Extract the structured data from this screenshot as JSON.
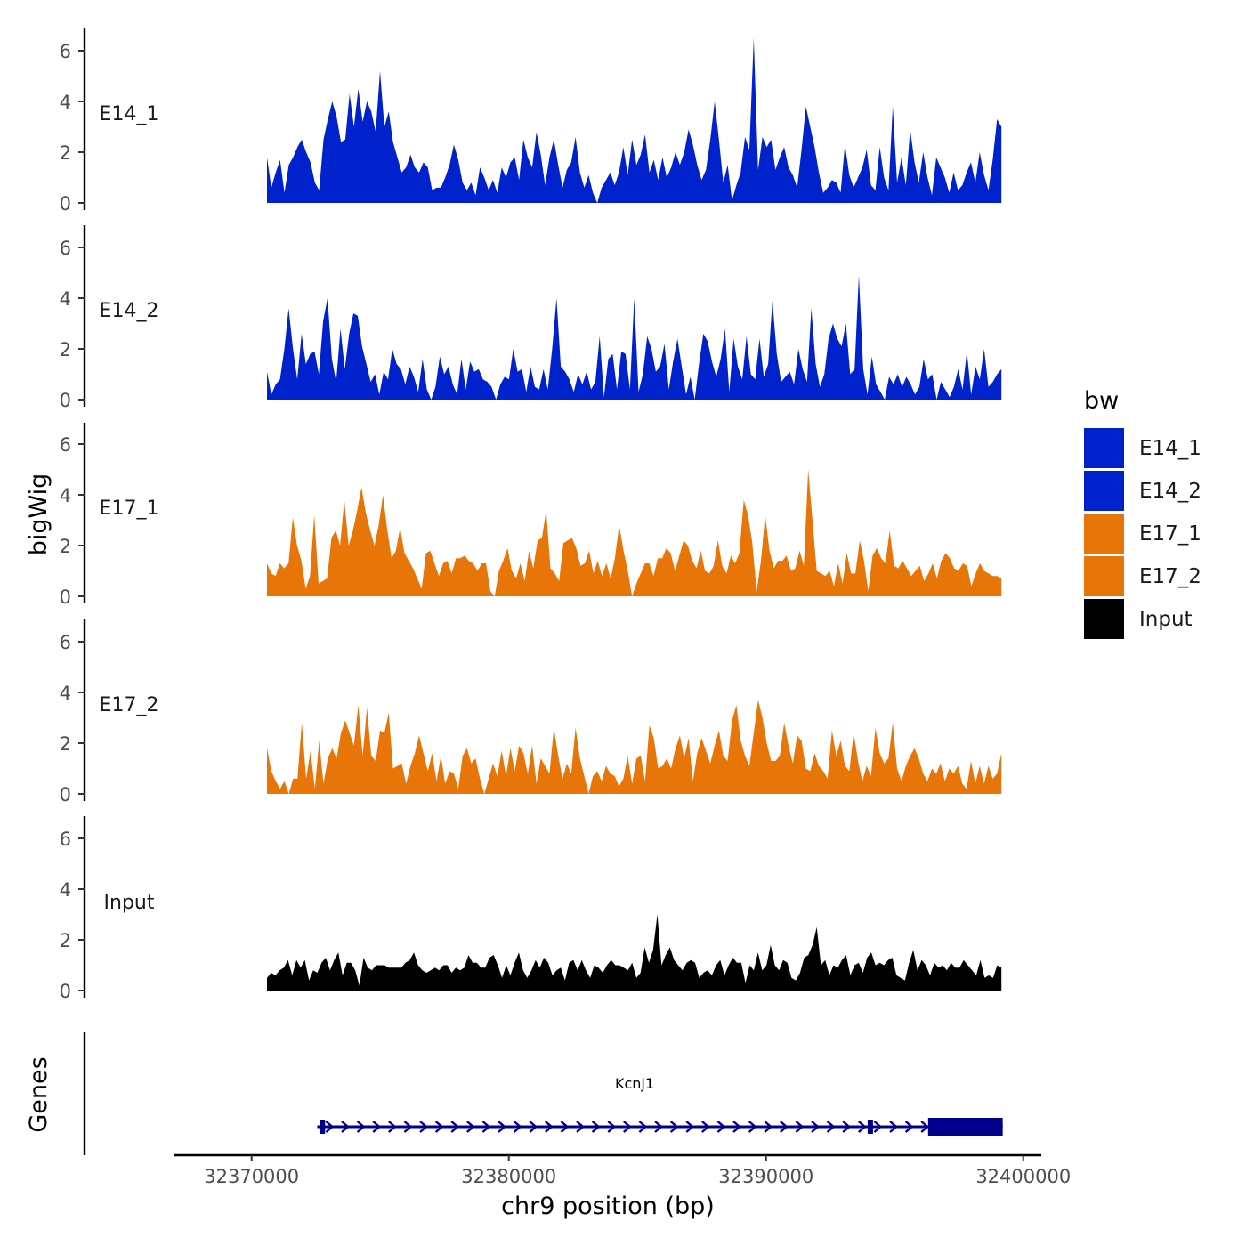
{
  "chart_data": {
    "type": "area",
    "genome_tracks": true,
    "y_axis_title": "bigWig",
    "x_axis_title": "chr9 position (bp)",
    "x_range": [
      32367000,
      32400700
    ],
    "x_ticks": [
      32370000,
      32380000,
      32390000,
      32400000
    ],
    "x_tick_labels": [
      "32370000",
      "32380000",
      "32390000",
      "32400000"
    ],
    "y_range": [
      0,
      7
    ],
    "y_ticks": [
      0,
      2,
      4,
      6
    ],
    "y_tick_labels": [
      "0",
      "2",
      "4",
      "6"
    ],
    "data_x_range": [
      32370600,
      32399150
    ],
    "tracks": [
      {
        "name": "E14_1",
        "color": "#0022CC",
        "values": [
          1.8,
          0.6,
          1.2,
          1.7,
          0.4,
          1.5,
          1.8,
          2.2,
          2.5,
          2.0,
          1.6,
          0.8,
          0.5,
          2.5,
          3.3,
          4.0,
          3.4,
          2.4,
          2.5,
          4.3,
          3.0,
          4.5,
          3.2,
          4.0,
          3.6,
          2.8,
          5.2,
          3.0,
          3.6,
          2.4,
          1.8,
          1.2,
          1.4,
          1.9,
          1.4,
          1.2,
          1.6,
          1.4,
          0.5,
          0.6,
          0.6,
          1.0,
          1.5,
          2.3,
          1.7,
          0.8,
          0.5,
          0.8,
          0.3,
          1.4,
          1.0,
          0.5,
          0.9,
          0.4,
          1.4,
          1.0,
          1.6,
          1.8,
          0.9,
          2.5,
          1.8,
          1.4,
          2.8,
          1.9,
          0.7,
          1.8,
          2.5,
          1.5,
          0.6,
          1.3,
          1.6,
          2.6,
          1.2,
          0.6,
          1.1,
          0.4,
          0.0,
          0.6,
          0.9,
          1.2,
          0.7,
          1.2,
          2.2,
          1.1,
          2.5,
          1.5,
          1.9,
          2.7,
          1.2,
          1.7,
          0.9,
          1.8,
          1.0,
          1.4,
          2.0,
          1.5,
          2.0,
          2.9,
          2.3,
          1.5,
          0.9,
          1.3,
          2.5,
          4.0,
          2.5,
          0.8,
          1.5,
          0.1,
          0.7,
          1.2,
          2.6,
          2.1,
          6.5,
          1.3,
          2.6,
          2.2,
          2.5,
          1.3,
          1.8,
          2.2,
          1.4,
          1.1,
          0.6,
          2.1,
          3.8,
          3.0,
          2.2,
          1.2,
          0.4,
          0.6,
          0.9,
          0.8,
          0.4,
          2.3,
          1.1,
          0.6,
          1.0,
          1.4,
          2.1,
          0.7,
          0.5,
          2.2,
          1.0,
          0.5,
          3.8,
          0.8,
          1.8,
          0.7,
          2.9,
          1.6,
          0.8,
          2.0,
          1.0,
          0.3,
          1.8,
          1.4,
          1.0,
          0.4,
          1.2,
          0.5,
          0.7,
          1.2,
          1.6,
          0.8,
          2.0,
          1.1,
          0.5,
          1.7,
          3.3,
          3.0
        ]
      },
      {
        "name": "E14_2",
        "color": "#0022CC",
        "values": [
          1.1,
          0.2,
          0.6,
          0.8,
          2.0,
          3.6,
          2.0,
          0.8,
          2.6,
          1.4,
          1.8,
          1.9,
          1.0,
          3.1,
          4.0,
          1.6,
          0.7,
          2.8,
          1.2,
          2.6,
          3.4,
          3.3,
          2.1,
          1.4,
          0.7,
          1.0,
          0.2,
          1.1,
          0.8,
          2.0,
          1.4,
          1.2,
          0.6,
          1.3,
          0.9,
          0.3,
          1.6,
          0.4,
          0.0,
          0.5,
          1.7,
          1.0,
          1.3,
          0.6,
          0.2,
          1.6,
          0.4,
          1.5,
          1.1,
          1.2,
          0.8,
          0.7,
          0.5,
          0.0,
          0.6,
          0.9,
          0.8,
          2.0,
          1.1,
          1.2,
          0.3,
          1.3,
          0.5,
          0.4,
          1.2,
          0.4,
          2.0,
          4.0,
          1.3,
          1.1,
          0.8,
          0.3,
          1.0,
          0.6,
          1.1,
          0.4,
          0.7,
          2.5,
          0.1,
          1.6,
          1.8,
          0.4,
          1.9,
          1.8,
          0.4,
          4.0,
          0.3,
          1.0,
          2.5,
          2.0,
          1.1,
          1.3,
          2.2,
          0.4,
          1.5,
          2.4,
          1.3,
          0.2,
          0.9,
          0.0,
          1.4,
          2.6,
          2.3,
          1.5,
          0.9,
          1.6,
          2.8,
          0.3,
          2.4,
          1.3,
          0.8,
          2.5,
          1.0,
          0.8,
          2.4,
          0.9,
          1.4,
          3.9,
          1.8,
          0.7,
          0.9,
          1.1,
          0.6,
          2.0,
          1.2,
          0.7,
          3.6,
          1.4,
          0.5,
          1.0,
          2.4,
          3.0,
          2.4,
          2.1,
          3.0,
          1.0,
          1.2,
          4.9,
          1.2,
          0.2,
          1.7,
          0.6,
          0.3,
          0.0,
          0.9,
          0.6,
          1.0,
          0.5,
          0.9,
          0.6,
          0.2,
          0.5,
          1.6,
          0.8,
          1.0,
          0.0,
          0.7,
          0.4,
          0.1,
          0.5,
          1.2,
          0.4,
          1.9,
          0.2,
          1.3,
          0.8,
          2.0,
          0.5,
          0.7,
          1.0,
          1.2
        ]
      },
      {
        "name": "E17_1",
        "color": "#E87508",
        "values": [
          1.3,
          0.9,
          0.8,
          1.3,
          1.1,
          1.3,
          3.1,
          2.0,
          1.4,
          0.3,
          0.8,
          3.2,
          0.5,
          0.6,
          0.7,
          2.3,
          2.6,
          2.0,
          3.8,
          2.0,
          2.6,
          3.4,
          4.3,
          3.3,
          2.6,
          2.0,
          2.8,
          4.0,
          2.6,
          1.5,
          1.8,
          2.7,
          1.7,
          1.4,
          1.1,
          0.7,
          0.3,
          1.7,
          1.8,
          1.3,
          0.8,
          1.3,
          1.4,
          0.9,
          1.5,
          1.5,
          1.6,
          1.4,
          1.3,
          1.0,
          1.3,
          1.3,
          0.2,
          0.0,
          1.0,
          1.4,
          1.9,
          1.0,
          0.7,
          1.3,
          0.6,
          1.8,
          1.1,
          2.2,
          2.3,
          3.4,
          1.1,
          0.9,
          0.6,
          2.1,
          2.2,
          2.3,
          1.9,
          1.2,
          1.3,
          1.8,
          0.9,
          1.4,
          0.8,
          1.3,
          0.7,
          1.5,
          2.8,
          1.8,
          1.0,
          0.0,
          0.5,
          0.9,
          1.3,
          1.3,
          0.8,
          1.5,
          1.5,
          1.9,
          1.7,
          1.0,
          1.6,
          2.2,
          2.0,
          1.4,
          1.1,
          1.8,
          1.0,
          0.9,
          1.2,
          2.2,
          1.2,
          0.9,
          1.6,
          1.3,
          1.7,
          3.8,
          3.2,
          2.1,
          0.2,
          1.4,
          3.2,
          1.8,
          1.1,
          1.4,
          1.4,
          1.6,
          1.0,
          1.1,
          1.8,
          1.2,
          5.0,
          3.0,
          1.0,
          0.9,
          0.8,
          1.0,
          0.4,
          1.3,
          0.5,
          1.7,
          0.9,
          0.9,
          2.2,
          1.4,
          0.2,
          1.6,
          1.9,
          1.5,
          1.3,
          2.6,
          1.2,
          1.1,
          1.4,
          1.1,
          0.8,
          1.0,
          1.2,
          0.6,
          0.9,
          1.3,
          0.7,
          1.4,
          1.7,
          1.5,
          1.1,
          1.0,
          1.3,
          1.2,
          0.4,
          0.9,
          1.3,
          1.0,
          0.9,
          0.8,
          0.8,
          0.7
        ]
      },
      {
        "name": "E17_2",
        "color": "#E87508",
        "values": [
          1.8,
          0.9,
          0.5,
          0.2,
          0.5,
          0.0,
          0.6,
          0.6,
          2.8,
          0.6,
          1.7,
          0.2,
          2.1,
          0.4,
          1.4,
          1.8,
          1.4,
          2.4,
          2.9,
          2.4,
          1.9,
          3.5,
          1.5,
          3.4,
          1.5,
          1.3,
          2.5,
          2.4,
          3.2,
          1.0,
          1.1,
          1.2,
          0.4,
          1.1,
          1.6,
          2.3,
          1.6,
          0.9,
          1.6,
          0.5,
          1.5,
          0.4,
          0.9,
          0.8,
          0.2,
          1.5,
          1.8,
          1.2,
          1.4,
          0.6,
          0.0,
          0.6,
          1.2,
          0.7,
          1.7,
          0.7,
          1.8,
          0.9,
          1.9,
          1.6,
          0.8,
          1.9,
          0.4,
          1.4,
          1.1,
          0.8,
          2.6,
          1.5,
          0.6,
          1.2,
          0.8,
          2.6,
          1.4,
          0.7,
          0.0,
          0.7,
          0.9,
          0.5,
          1.1,
          0.8,
          0.7,
          0.3,
          0.6,
          1.5,
          0.4,
          1.4,
          1.5,
          0.5,
          2.7,
          2.2,
          1.0,
          1.1,
          1.4,
          1.0,
          1.8,
          2.3,
          1.4,
          2.2,
          0.5,
          1.6,
          2.2,
          1.7,
          1.2,
          1.9,
          2.5,
          1.5,
          1.3,
          2.9,
          3.5,
          2.1,
          1.5,
          1.1,
          2.4,
          3.7,
          3.0,
          2.0,
          1.3,
          1.3,
          1.5,
          2.8,
          1.9,
          1.2,
          2.3,
          2.1,
          1.0,
          0.9,
          1.6,
          1.1,
          0.9,
          0.6,
          2.5,
          1.5,
          2.1,
          1.1,
          0.9,
          2.4,
          1.3,
          0.5,
          1.1,
          0.7,
          2.6,
          1.6,
          1.2,
          1.4,
          2.8,
          1.0,
          0.5,
          1.1,
          1.5,
          1.8,
          1.4,
          0.8,
          0.5,
          1.0,
          0.8,
          1.2,
          0.5,
          1.0,
          0.8,
          1.1,
          0.4,
          0.2,
          1.3,
          0.4,
          1.1,
          0.4,
          1.1,
          0.6,
          0.8,
          1.6
        ]
      },
      {
        "name": "Input",
        "color": "#000000",
        "values": [
          0.5,
          0.7,
          0.6,
          0.8,
          0.9,
          1.2,
          0.6,
          1.2,
          0.9,
          1.2,
          0.4,
          0.8,
          0.7,
          1.1,
          1.3,
          0.8,
          1.2,
          1.5,
          0.6,
          1.1,
          1.1,
          0.8,
          0.2,
          1.3,
          0.9,
          0.8,
          1.0,
          1.0,
          1.0,
          0.9,
          0.9,
          0.9,
          0.9,
          1.1,
          1.2,
          1.5,
          1.0,
          0.8,
          0.7,
          0.8,
          0.9,
          0.8,
          1.0,
          1.0,
          0.7,
          0.9,
          0.8,
          0.9,
          1.4,
          1.1,
          1.1,
          0.9,
          0.9,
          1.3,
          1.4,
          1.0,
          0.5,
          1.0,
          0.6,
          1.1,
          1.5,
          0.8,
          0.5,
          0.8,
          1.2,
          0.9,
          1.3,
          1.1,
          0.6,
          0.8,
          0.9,
          0.4,
          1.1,
          1.2,
          0.8,
          1.2,
          0.8,
          0.5,
          1.0,
          0.9,
          0.7,
          1.0,
          1.2,
          1.0,
          1.0,
          0.9,
          0.8,
          1.1,
          0.5,
          0.7,
          1.7,
          1.1,
          1.6,
          3.0,
          1.0,
          1.4,
          1.7,
          1.2,
          1.0,
          0.8,
          1.1,
          1.2,
          1.1,
          0.5,
          0.7,
          0.8,
          0.6,
          1.0,
          1.2,
          0.6,
          1.0,
          1.3,
          1.1,
          1.1,
          0.3,
          1.0,
          0.8,
          1.5,
          0.8,
          1.0,
          1.8,
          1.0,
          0.8,
          1.2,
          1.1,
          0.5,
          0.4,
          0.7,
          1.3,
          1.4,
          1.8,
          2.5,
          1.0,
          1.2,
          0.6,
          1.0,
          0.9,
          1.2,
          1.4,
          0.6,
          1.0,
          1.1,
          0.7,
          1.3,
          1.5,
          1.0,
          1.1,
          1.0,
          1.2,
          1.3,
          0.6,
          0.5,
          0.4,
          1.1,
          1.6,
          0.8,
          1.2,
          1.0,
          0.6,
          1.1,
          0.9,
          1.0,
          0.8,
          1.1,
          0.9,
          0.9,
          1.2,
          1.0,
          0.8,
          0.6,
          1.2,
          0.5,
          0.6,
          0.5,
          1.0,
          0.9
        ]
      }
    ],
    "legend": {
      "title": "bw",
      "placement": "right",
      "items": [
        {
          "label": "E14_1",
          "color": "#0022CC"
        },
        {
          "label": "E14_2",
          "color": "#0022CC"
        },
        {
          "label": "E17_1",
          "color": "#E87508"
        },
        {
          "label": "E17_2",
          "color": "#E87508"
        },
        {
          "label": "Input",
          "color": "#000000"
        }
      ]
    },
    "genes_track": {
      "title": "Genes",
      "gene": "Kcnj1",
      "strand": "+",
      "color": "#00008B",
      "start": 32372550,
      "end": 32399200,
      "exons": [
        {
          "start": 32372650,
          "end": 32372850
        },
        {
          "start": 32393950,
          "end": 32394100
        },
        {
          "start": 32396300,
          "end": 32399200
        }
      ]
    }
  }
}
